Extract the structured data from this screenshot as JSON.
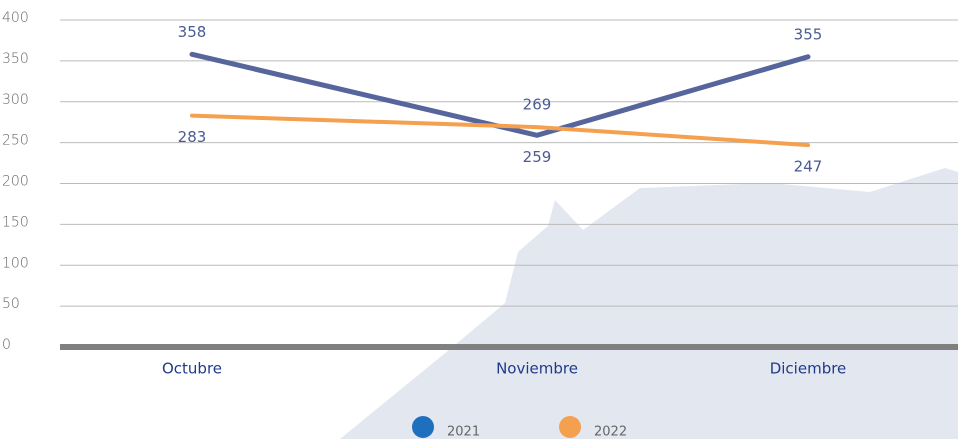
{
  "chart_data": {
    "type": "line",
    "categories": [
      "Octubre",
      "Noviembre",
      "Diciembre"
    ],
    "series": [
      {
        "name": "2021",
        "color": "#56659b",
        "legend_color": "#1f6fbf",
        "values": [
          358,
          259,
          355
        ]
      },
      {
        "name": "2022",
        "color": "#f4a04f",
        "legend_color": "#f4a04f",
        "values": [
          283,
          269,
          247
        ]
      }
    ],
    "ylim": [
      0,
      400
    ],
    "yticks": [
      0,
      50,
      100,
      150,
      200,
      250,
      300,
      350,
      400
    ],
    "grid": true,
    "legend": "bottom"
  }
}
